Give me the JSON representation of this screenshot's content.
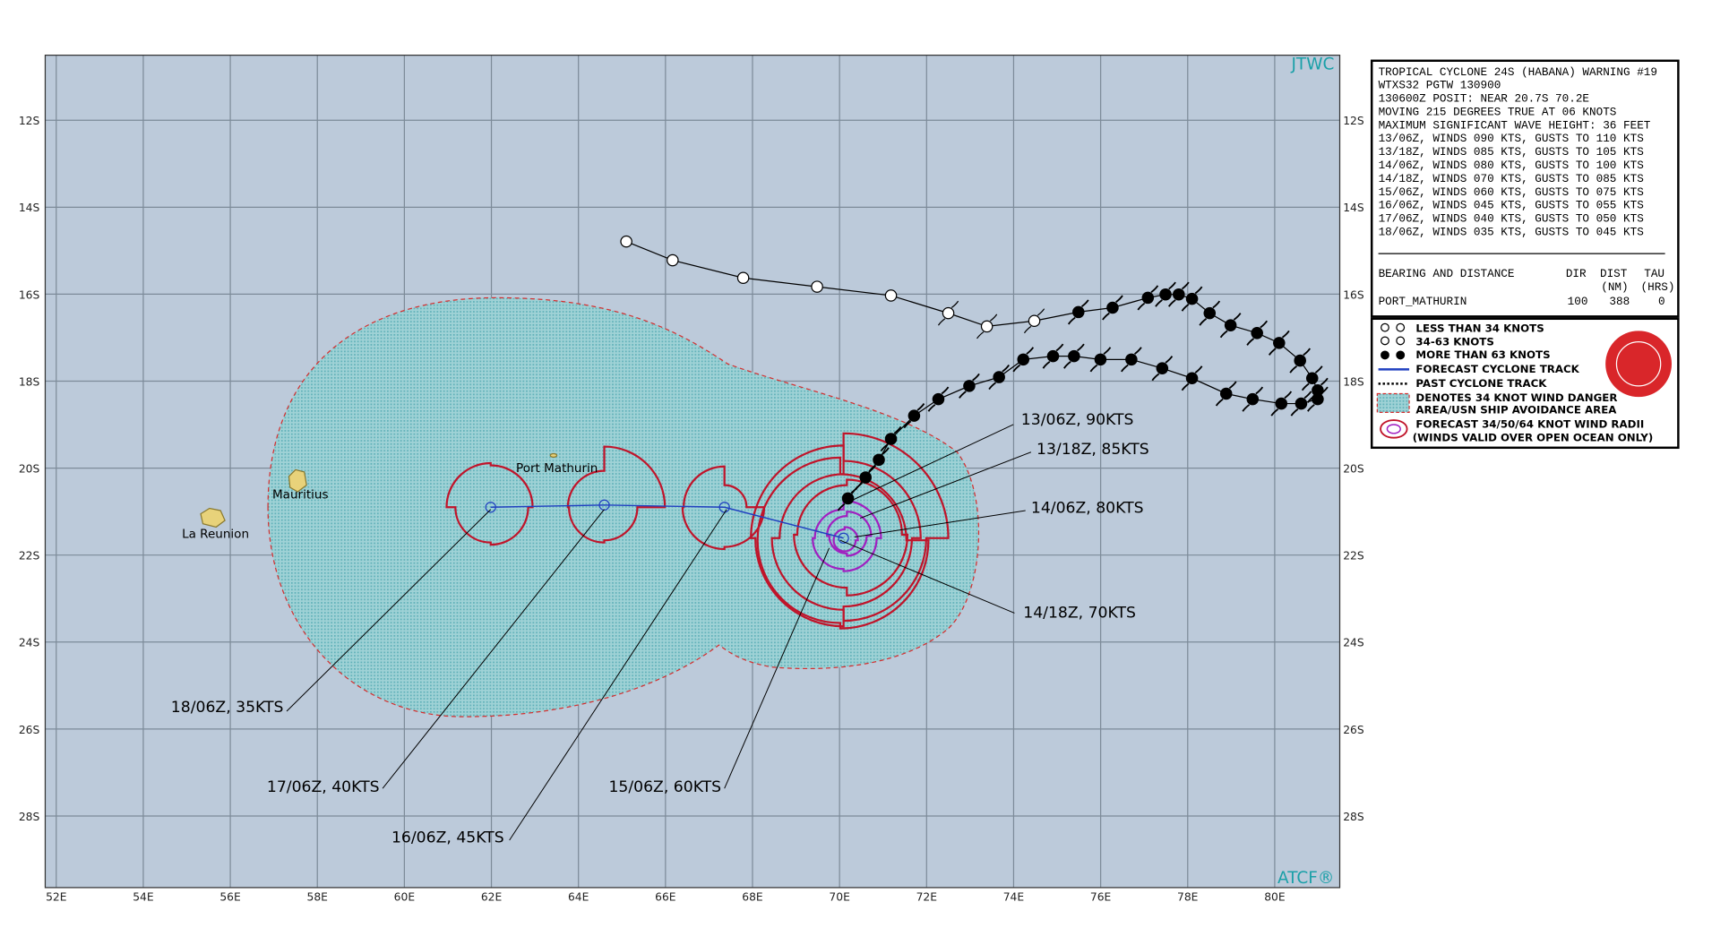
{
  "map": {
    "agency": "JTWC",
    "footer": "ATCF®",
    "lat_labels": [
      "12S",
      "14S",
      "16S",
      "18S",
      "20S",
      "22S",
      "24S",
      "26S",
      "28S"
    ],
    "lon_labels": [
      "52E",
      "54E",
      "56E",
      "58E",
      "60E",
      "62E",
      "64E",
      "66E",
      "68E",
      "70E",
      "72E",
      "74E",
      "76E",
      "78E",
      "80E"
    ],
    "places": [
      "Mauritius",
      "La Reunion",
      "Port Mathurin"
    ],
    "forecast_labels": [
      "13/06Z, 90KTS",
      "13/18Z, 85KTS",
      "14/06Z, 80KTS",
      "14/18Z, 70KTS",
      "15/06Z, 60KTS",
      "16/06Z, 45KTS",
      "17/06Z, 40KTS",
      "18/06Z, 35KTS"
    ]
  },
  "warning": {
    "lines": [
      "TROPICAL CYCLONE 24S (HABANA) WARNING #19",
      "WTXS32 PGTW 130900",
      "130600Z POSIT: NEAR 20.7S 70.2E",
      "MOVING 215 DEGREES TRUE AT 06 KNOTS",
      "MAXIMUM SIGNIFICANT WAVE HEIGHT: 36 FEET",
      "13/06Z, WINDS 090 KTS, GUSTS TO 110 KTS",
      "13/18Z, WINDS 085 KTS, GUSTS TO 105 KTS",
      "14/06Z, WINDS 080 KTS, GUSTS TO 100 KTS",
      "14/18Z, WINDS 070 KTS, GUSTS TO 085 KTS",
      "15/06Z, WINDS 060 KTS, GUSTS TO 075 KTS",
      "16/06Z, WINDS 045 KTS, GUSTS TO 055 KTS",
      "17/06Z, WINDS 040 KTS, GUSTS TO 050 KTS",
      "18/06Z, WINDS 035 KTS, GUSTS TO 045 KTS"
    ],
    "header": [
      "BEARING AND DISTANCE",
      "DIR",
      "DIST",
      "TAU"
    ],
    "units": [
      "(NM)",
      "(HRS)"
    ],
    "row": [
      "PORT_MATHURIN",
      "100",
      "388",
      "0"
    ]
  },
  "legend": {
    "items": [
      "LESS THAN 34 KNOTS",
      "34-63 KNOTS",
      "MORE THAN 63 KNOTS",
      "FORECAST CYCLONE TRACK",
      "PAST CYCLONE TRACK",
      "DENOTES 34 KNOT WIND DANGER",
      "AREA/USN SHIP AVOIDANCE AREA",
      "FORECAST 34/50/64 KNOT WIND RADII",
      "(WINDS VALID OVER OPEN OCEAN ONLY)"
    ]
  }
}
